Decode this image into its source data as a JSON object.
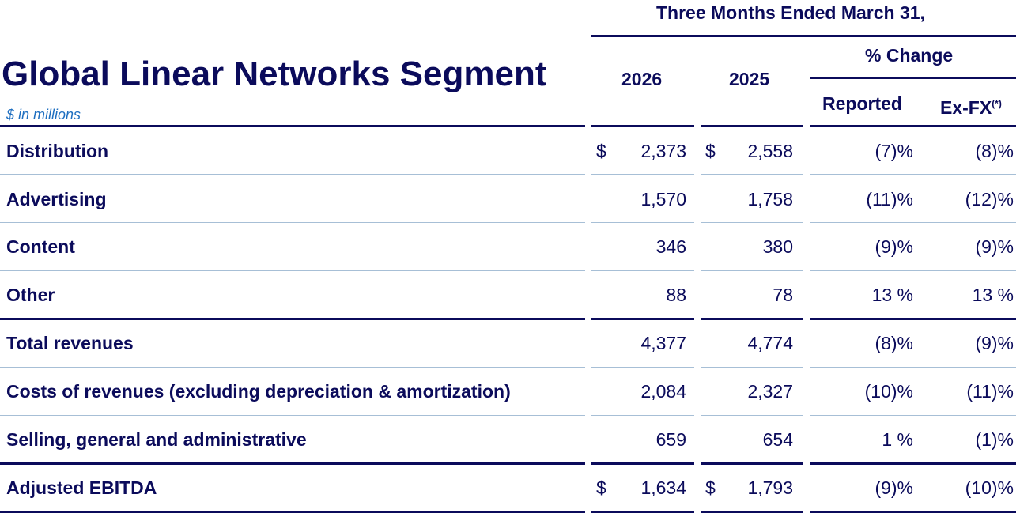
{
  "header": {
    "period": "Three Months Ended March 31,",
    "title": "Global Linear Networks Segment",
    "subtitle": "$ in millions",
    "year_current": "2026",
    "year_prior": "2025",
    "pct_change": "% Change",
    "reported": "Reported",
    "exfx": "Ex-FX",
    "exfx_note": "(*)"
  },
  "rows": [
    {
      "label": "Distribution",
      "c2026": "2,373",
      "c2025": "2,558",
      "reported": "(7)%",
      "exfx": "(8)%",
      "dollar": "$"
    },
    {
      "label": "Advertising",
      "c2026": "1,570",
      "c2025": "1,758",
      "reported": "(11)%",
      "exfx": "(12)%"
    },
    {
      "label": "Content",
      "c2026": "346",
      "c2025": "380",
      "reported": "(9)%",
      "exfx": "(9)%"
    },
    {
      "label": "Other",
      "c2026": "88",
      "c2025": "78",
      "reported": "13 %",
      "exfx": "13 %"
    },
    {
      "label": "Total revenues",
      "c2026": "4,377",
      "c2025": "4,774",
      "reported": "(8)%",
      "exfx": "(9)%"
    },
    {
      "label": "Costs of revenues (excluding depreciation & amortization)",
      "c2026": "2,084",
      "c2025": "2,327",
      "reported": "(10)%",
      "exfx": "(11)%"
    },
    {
      "label": "Selling, general and administrative",
      "c2026": "659",
      "c2025": "654",
      "reported": "1 %",
      "exfx": "(1)%"
    },
    {
      "label": "Adjusted EBITDA",
      "c2026": "1,634",
      "c2025": "1,793",
      "reported": "(9)%",
      "exfx": "(10)%",
      "dollar": "$"
    }
  ]
}
